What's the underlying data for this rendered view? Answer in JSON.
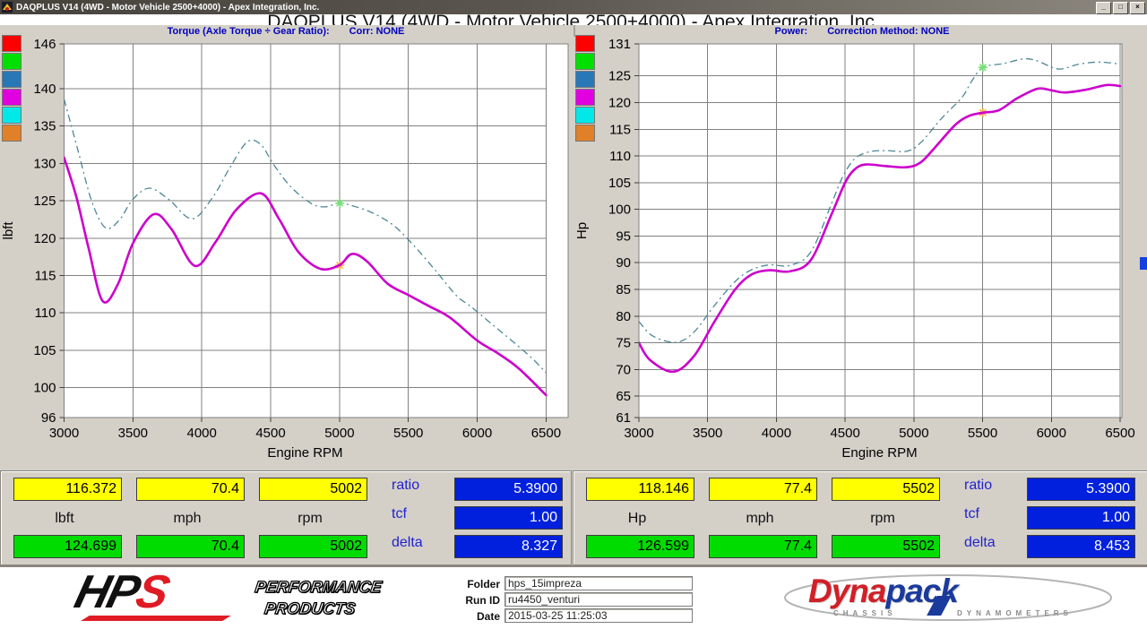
{
  "window": {
    "title": "DAQPLUS V14 (4WD - Motor Vehicle 2500+4000) - Apex Integration, Inc.",
    "controls": [
      {
        "name": "minimize",
        "glyph": "_"
      },
      {
        "name": "maximize",
        "glyph": "□"
      },
      {
        "name": "close",
        "glyph": "×"
      }
    ]
  },
  "heading": "DAQPLUS V14 (4WD - Motor Vehicle 2500+4000) - Apex Integration, Inc.",
  "colors": {
    "panel_bg": "#D4D0C8",
    "plot_bg": "#FFFFFF",
    "grid": "#808080",
    "current_run": "#CC00CC",
    "reference_run": "#4D8796",
    "cursor_current_marker": "#FFAA44",
    "cursor_reference_marker": "#77DF77",
    "value_yellow": "#FFFF00",
    "value_green": "#00DC00",
    "value_blue": "#0020DD",
    "header_text": "#0000BE"
  },
  "chart_data": [
    {
      "type": "line",
      "title": "Torque (Axle Torque ÷ Gear Ratio):",
      "correction_label": "Corr: NONE",
      "xlabel": "Engine RPM",
      "ylabel": "lbft",
      "xlim": [
        3000,
        6660
      ],
      "ylim": [
        96,
        146
      ],
      "xticks": [
        3000,
        3500,
        4000,
        4500,
        5000,
        5500,
        6000,
        6500
      ],
      "yticks": [
        96,
        100,
        105,
        110,
        115,
        120,
        125,
        130,
        135,
        140,
        146
      ],
      "grid": true,
      "legend_swatches": [
        {
          "name": "red",
          "color": "#FF0000"
        },
        {
          "name": "green",
          "color": "#00E000"
        },
        {
          "name": "blue",
          "color": "#2878B8"
        },
        {
          "name": "magenta",
          "color": "#E000E0"
        },
        {
          "name": "cyan",
          "color": "#00E8E8"
        },
        {
          "name": "orange",
          "color": "#E08028"
        }
      ],
      "series": [
        {
          "name": "reference-run-torque",
          "style": "dashdot",
          "width": 1.3,
          "points": [
            [
              3000,
              138.6
            ],
            [
              3100,
              131.8
            ],
            [
              3200,
              125.0
            ],
            [
              3300,
              121.4
            ],
            [
              3400,
              122.4
            ],
            [
              3500,
              125.2
            ],
            [
              3620,
              126.7
            ],
            [
              3760,
              125.2
            ],
            [
              3930,
              122.6
            ],
            [
              4080,
              125.5
            ],
            [
              4200,
              129.3
            ],
            [
              4330,
              132.9
            ],
            [
              4430,
              132.5
            ],
            [
              4520,
              129.9
            ],
            [
              4650,
              126.8
            ],
            [
              4800,
              124.6
            ],
            [
              4900,
              124.2
            ],
            [
              5002,
              124.7
            ],
            [
              5120,
              124.2
            ],
            [
              5250,
              123.3
            ],
            [
              5400,
              121.6
            ],
            [
              5550,
              118.8
            ],
            [
              5700,
              115.6
            ],
            [
              5850,
              112.3
            ],
            [
              5950,
              110.9
            ],
            [
              6100,
              108.6
            ],
            [
              6250,
              106.3
            ],
            [
              6400,
              103.9
            ],
            [
              6500,
              102.0
            ]
          ]
        },
        {
          "name": "current-run-torque",
          "style": "solid",
          "width": 2.6,
          "points": [
            [
              3000,
              130.8
            ],
            [
              3090,
              125.5
            ],
            [
              3180,
              118.5
            ],
            [
              3280,
              111.6
            ],
            [
              3390,
              113.8
            ],
            [
              3500,
              119.3
            ],
            [
              3650,
              123.2
            ],
            [
              3780,
              121.2
            ],
            [
              3950,
              116.3
            ],
            [
              4100,
              119.5
            ],
            [
              4250,
              123.8
            ],
            [
              4430,
              126.0
            ],
            [
              4560,
              122.6
            ],
            [
              4700,
              118.2
            ],
            [
              4860,
              115.9
            ],
            [
              5000,
              116.4
            ],
            [
              5090,
              117.9
            ],
            [
              5200,
              116.9
            ],
            [
              5350,
              113.9
            ],
            [
              5500,
              112.4
            ],
            [
              5650,
              110.9
            ],
            [
              5800,
              109.4
            ],
            [
              6000,
              106.3
            ],
            [
              6150,
              104.6
            ],
            [
              6300,
              102.6
            ],
            [
              6500,
              99.0
            ]
          ]
        }
      ],
      "markers": [
        {
          "name": "cursor-reference",
          "x": 5002,
          "y": 124.699
        },
        {
          "name": "cursor-current",
          "x": 5002,
          "y": 116.372
        }
      ]
    },
    {
      "type": "line",
      "title": "Power:",
      "correction_label": "Correction Method: NONE",
      "xlabel": "Engine RPM",
      "ylabel": "Hp",
      "xlim": [
        3000,
        6513
      ],
      "ylim": [
        61,
        131
      ],
      "xticks": [
        3000,
        3500,
        4000,
        4500,
        5000,
        5500,
        6000,
        6500
      ],
      "yticks": [
        61,
        65,
        70,
        75,
        80,
        85,
        90,
        95,
        100,
        105,
        110,
        115,
        120,
        125,
        131
      ],
      "grid": true,
      "legend_swatches": [
        {
          "name": "red",
          "color": "#FF0000"
        },
        {
          "name": "green",
          "color": "#00E000"
        },
        {
          "name": "blue",
          "color": "#2878B8"
        },
        {
          "name": "magenta",
          "color": "#E000E0"
        },
        {
          "name": "cyan",
          "color": "#00E8E8"
        },
        {
          "name": "orange",
          "color": "#E08028"
        }
      ],
      "series": [
        {
          "name": "reference-run-power",
          "style": "dashdot",
          "width": 1.3,
          "points": [
            [
              3000,
              79.0
            ],
            [
              3100,
              76.3
            ],
            [
              3270,
              75.1
            ],
            [
              3400,
              77.0
            ],
            [
              3550,
              82.0
            ],
            [
              3700,
              86.5
            ],
            [
              3820,
              88.7
            ],
            [
              3950,
              89.6
            ],
            [
              4100,
              89.5
            ],
            [
              4250,
              92.0
            ],
            [
              4400,
              101.0
            ],
            [
              4480,
              106.0
            ],
            [
              4570,
              109.5
            ],
            [
              4680,
              110.8
            ],
            [
              4800,
              111.0
            ],
            [
              4950,
              110.9
            ],
            [
              5050,
              112.5
            ],
            [
              5200,
              117.0
            ],
            [
              5350,
              121.0
            ],
            [
              5420,
              124.0
            ],
            [
              5502,
              126.6
            ],
            [
              5650,
              127.3
            ],
            [
              5800,
              128.2
            ],
            [
              5900,
              127.8
            ],
            [
              6050,
              126.3
            ],
            [
              6200,
              127.2
            ],
            [
              6350,
              127.6
            ],
            [
              6500,
              127.2
            ]
          ]
        },
        {
          "name": "current-run-power",
          "style": "solid",
          "width": 2.6,
          "points": [
            [
              3000,
              75.0
            ],
            [
              3080,
              71.8
            ],
            [
              3250,
              69.6
            ],
            [
              3400,
              72.5
            ],
            [
              3550,
              79.0
            ],
            [
              3700,
              85.0
            ],
            [
              3820,
              87.8
            ],
            [
              3950,
              88.6
            ],
            [
              4100,
              88.4
            ],
            [
              4250,
              90.5
            ],
            [
              4400,
              99.0
            ],
            [
              4500,
              105.0
            ],
            [
              4570,
              107.5
            ],
            [
              4650,
              108.4
            ],
            [
              4800,
              108.1
            ],
            [
              4950,
              107.9
            ],
            [
              5050,
              108.8
            ],
            [
              5150,
              111.5
            ],
            [
              5300,
              115.8
            ],
            [
              5400,
              117.5
            ],
            [
              5502,
              118.1
            ],
            [
              5620,
              118.6
            ],
            [
              5750,
              120.8
            ],
            [
              5900,
              122.6
            ],
            [
              6000,
              122.3
            ],
            [
              6100,
              121.9
            ],
            [
              6250,
              122.4
            ],
            [
              6400,
              123.3
            ],
            [
              6500,
              123.1
            ]
          ]
        }
      ],
      "markers": [
        {
          "name": "cursor-reference",
          "x": 5502,
          "y": 126.599
        },
        {
          "name": "cursor-current",
          "x": 5502,
          "y": 118.146
        }
      ]
    }
  ],
  "panels": [
    {
      "cursor_values": [
        "116.372",
        "70.4",
        "5002"
      ],
      "units": [
        "lbft",
        "mph",
        "rpm"
      ],
      "reference_values": [
        "124.699",
        "70.4",
        "5002"
      ],
      "stats": [
        {
          "label": "ratio",
          "value": "5.3900"
        },
        {
          "label": "tcf",
          "value": "1.00"
        },
        {
          "label": "delta",
          "value": "8.327"
        }
      ]
    },
    {
      "cursor_values": [
        "118.146",
        "77.4",
        "5502"
      ],
      "units": [
        "Hp",
        "mph",
        "rpm"
      ],
      "reference_values": [
        "126.599",
        "77.4",
        "5502"
      ],
      "stats": [
        {
          "label": "ratio",
          "value": "5.3900"
        },
        {
          "label": "tcf",
          "value": "1.00"
        },
        {
          "label": "delta",
          "value": "8.453"
        }
      ]
    }
  ],
  "footer": {
    "hps": {
      "hp": "HP",
      "s": "S",
      "line1": "PERFORMANCE",
      "line2": "PRODUCTS"
    },
    "form": [
      {
        "label": "Folder",
        "value": "hps_15impreza"
      },
      {
        "label": "Run ID",
        "value": "ru4450_venturi"
      },
      {
        "label": "Date",
        "value": "2015-03-25 11:25:03"
      }
    ],
    "dynapack": {
      "part1": "Dyna",
      "part2": "pack",
      "sub1": "CHASSIS",
      "sub2": "DYNAMOMETERS"
    }
  }
}
